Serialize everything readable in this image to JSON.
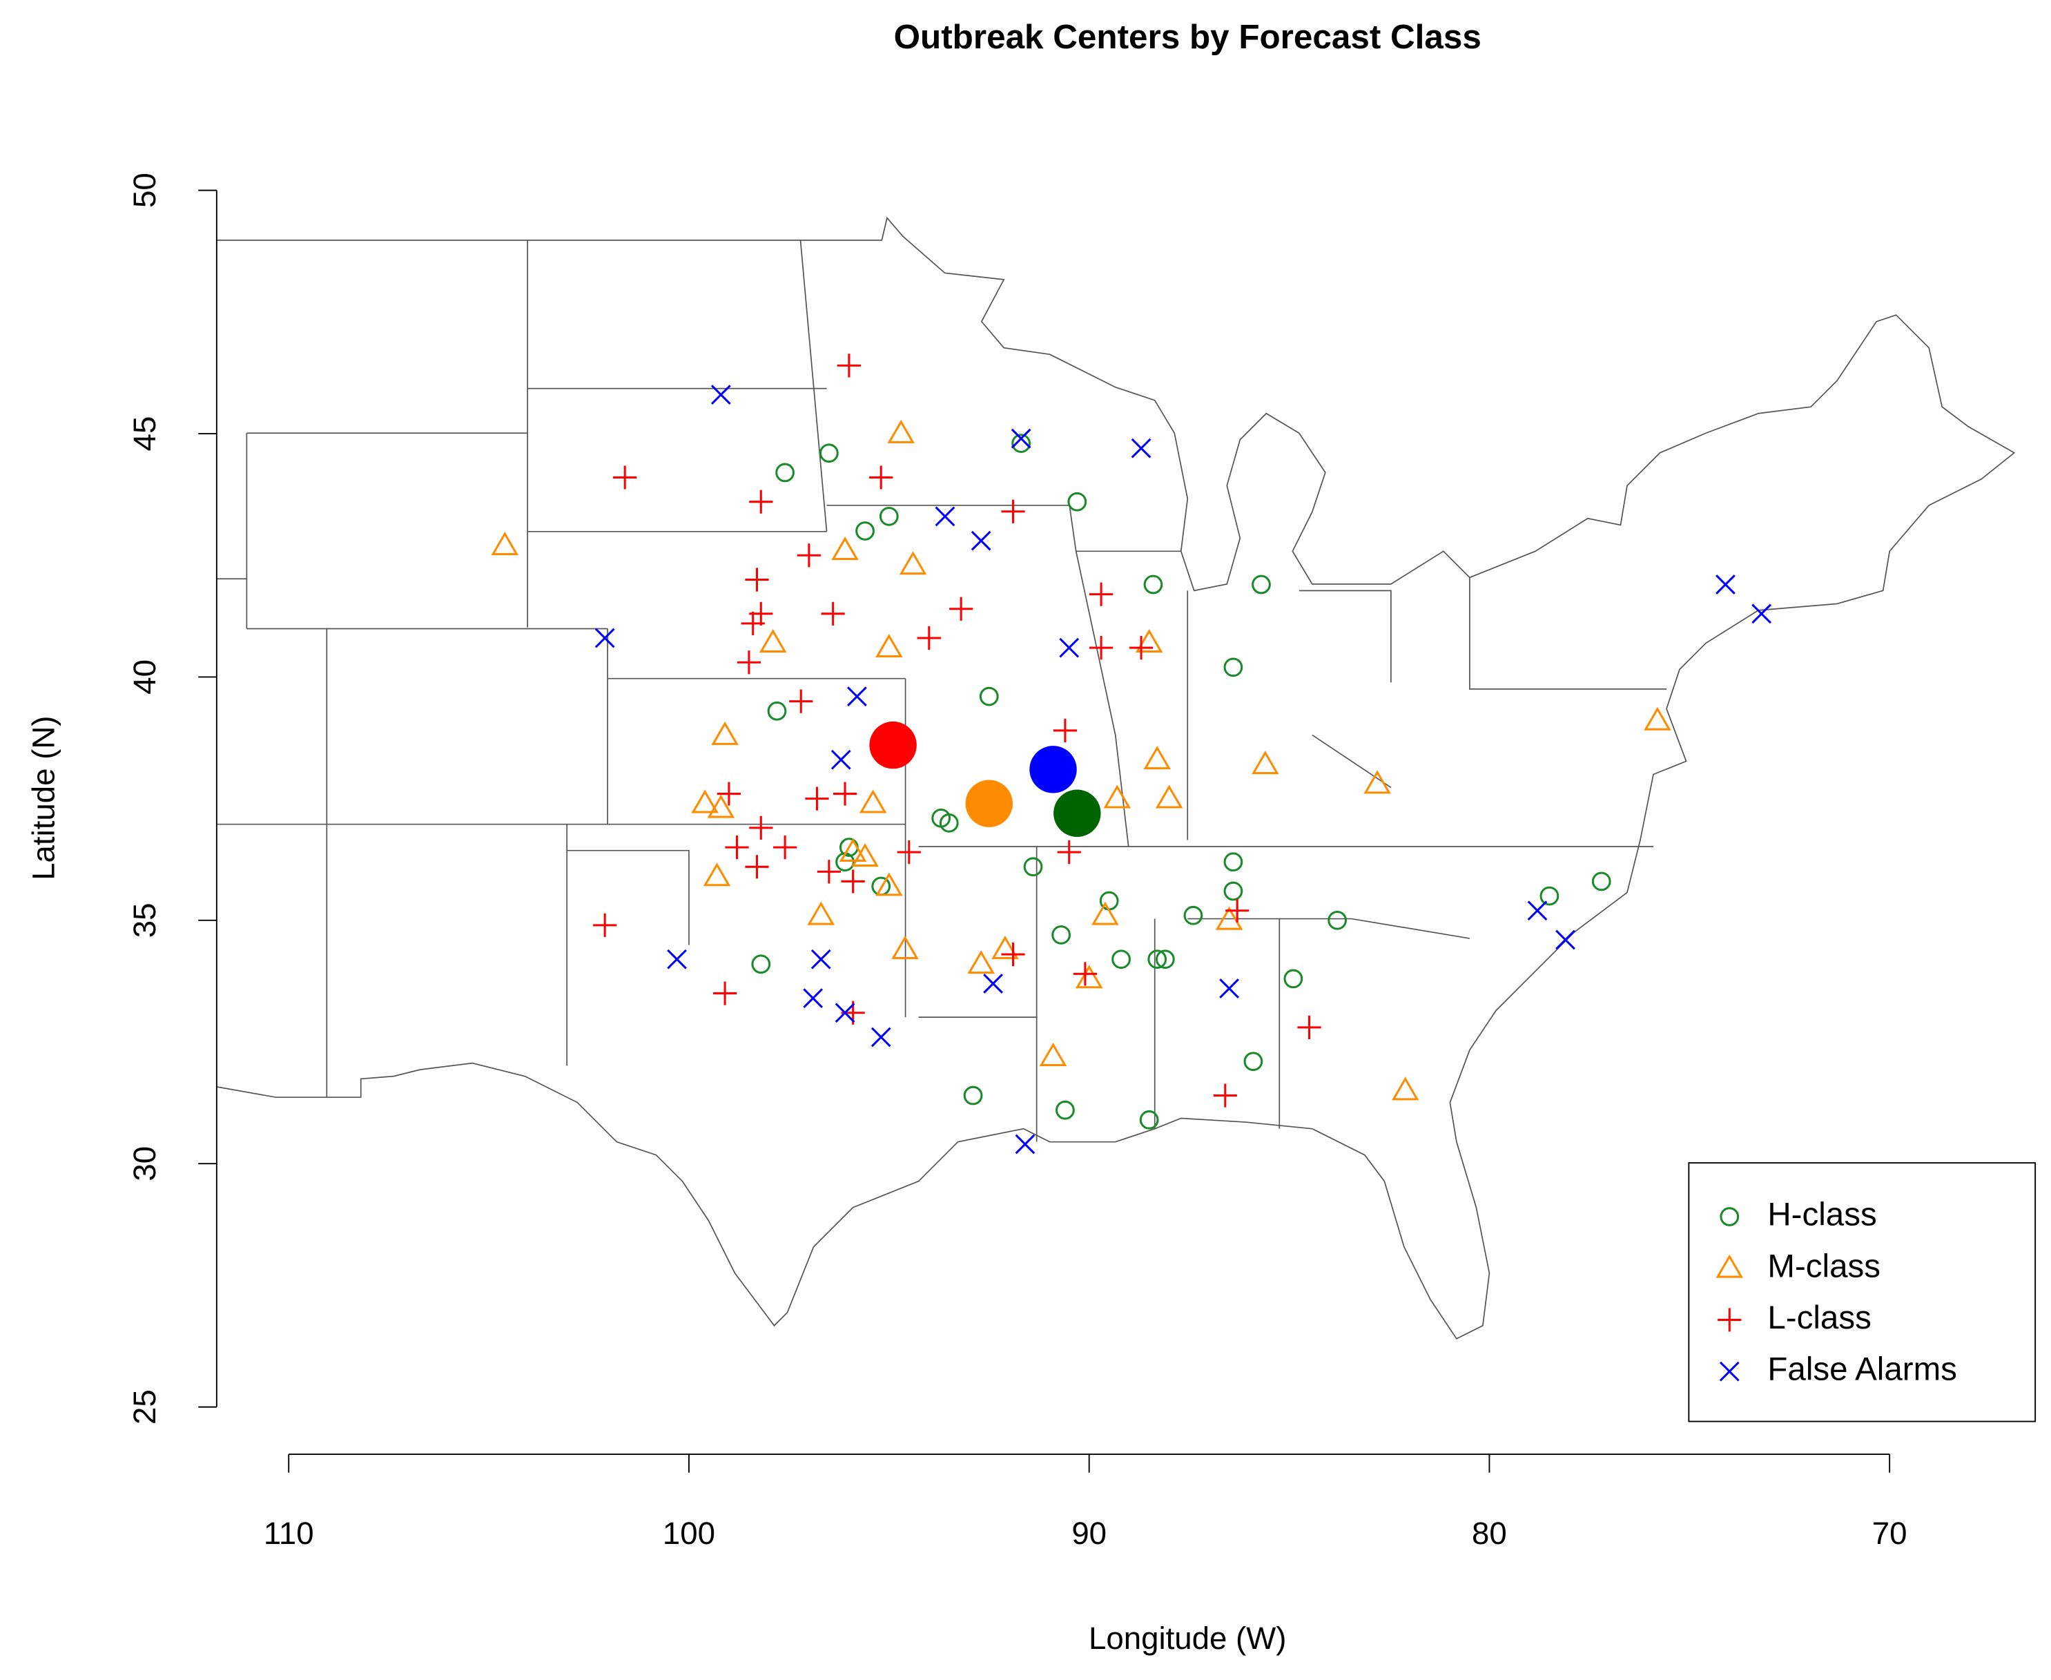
{
  "chart_data": {
    "type": "scatter",
    "title": "Outbreak Centers by Forecast Class",
    "x_label": "Longitude (W)",
    "y_label": "Latitude (N)",
    "xlim": [
      111.8,
      66.5
    ],
    "ylim": [
      25,
      50
    ],
    "xticks": [
      110,
      100,
      90,
      80,
      70
    ],
    "yticks": [
      25,
      30,
      35,
      40,
      45,
      50
    ],
    "legend": "bottomright",
    "series": [
      {
        "name": "H-class",
        "color": "#1a8a2a",
        "marker": "circle",
        "x": [
          97.6,
          96.5,
          91.7,
          90.3,
          95.0,
          95.6,
          88.4,
          85.7,
          86.4,
          92.5,
          97.8,
          93.7,
          93.5,
          96.0,
          96.1,
          95.2,
          91.4,
          86.4,
          86.4,
          89.5,
          90.7,
          87.4,
          83.8,
          78.5,
          77.2,
          98.2,
          89.2,
          88.3,
          88.1,
          84.9,
          85.9,
          92.9,
          90.6,
          88.5
        ],
        "y": [
          44.2,
          44.6,
          44.8,
          43.6,
          43.3,
          43.0,
          41.9,
          41.9,
          40.2,
          39.6,
          39.3,
          37.1,
          37.0,
          36.5,
          36.2,
          35.7,
          36.1,
          36.2,
          35.6,
          35.4,
          34.7,
          35.1,
          35.0,
          35.5,
          35.8,
          34.1,
          34.2,
          34.2,
          34.2,
          33.8,
          32.1,
          31.4,
          31.1,
          30.9
        ]
      },
      {
        "name": "M-class",
        "color": "#ff8c00",
        "marker": "triangle",
        "x": [
          104.6,
          94.7,
          94.4,
          96.1,
          97.9,
          95.0,
          88.5,
          99.1,
          75.8,
          99.6,
          99.2,
          99.3,
          95.4,
          88.3,
          89.3,
          88.0,
          85.6,
          82.8,
          95.9,
          95.6,
          95.0,
          96.7,
          94.6,
          92.7,
          92.1,
          86.5,
          89.6,
          90.0,
          90.9,
          82.1
        ],
        "y": [
          42.7,
          45.0,
          42.3,
          42.6,
          40.7,
          40.6,
          40.7,
          38.8,
          39.1,
          37.4,
          37.3,
          35.9,
          37.4,
          38.3,
          37.5,
          37.5,
          38.2,
          37.8,
          36.4,
          36.3,
          35.7,
          35.1,
          34.4,
          34.1,
          34.4,
          35.0,
          35.1,
          33.8,
          32.2,
          31.5
        ]
      },
      {
        "name": "L-class",
        "color": "#ff0000",
        "marker": "plus",
        "x": [
          96.0,
          101.6,
          95.2,
          98.2,
          91.9,
          97.0,
          98.3,
          96.4,
          98.2,
          93.2,
          94.0,
          89.7,
          98.4,
          89.7,
          88.7,
          98.5,
          97.2,
          90.6,
          99.0,
          96.8,
          96.1,
          98.2,
          97.6,
          98.8,
          98.3,
          96.5,
          94.5,
          90.5,
          95.9,
          102.1,
          99.1,
          95.9,
          91.9,
          90.1,
          86.3,
          84.5,
          86.6
        ],
        "y": [
          46.4,
          44.1,
          44.1,
          43.6,
          43.4,
          42.5,
          42.0,
          41.3,
          41.3,
          41.4,
          40.8,
          41.7,
          41.1,
          40.6,
          40.6,
          40.3,
          39.5,
          38.9,
          37.6,
          37.5,
          37.6,
          36.9,
          36.5,
          36.5,
          36.1,
          36.0,
          36.4,
          36.4,
          35.8,
          34.9,
          33.5,
          33.1,
          34.3,
          33.9,
          35.2,
          32.8,
          31.4
        ]
      },
      {
        "name": "False Alarms",
        "color": "#0000ff",
        "marker": "x",
        "x": [
          99.2,
          91.7,
          88.7,
          93.6,
          92.7,
          102.1,
          90.5,
          95.8,
          96.2,
          74.1,
          73.2,
          100.3,
          96.7,
          96.9,
          96.1,
          95.2,
          92.4,
          86.5,
          78.8,
          78.1,
          91.6
        ],
        "y": [
          45.8,
          44.9,
          44.7,
          43.3,
          42.8,
          40.8,
          40.6,
          39.6,
          38.3,
          41.9,
          41.3,
          34.2,
          34.2,
          33.4,
          33.1,
          32.6,
          33.7,
          33.6,
          35.2,
          34.6,
          30.4
        ]
      }
    ],
    "centers": [
      {
        "color": "#ff0000",
        "x": 94.9,
        "y": 38.6
      },
      {
        "color": "#ff8c00",
        "x": 92.5,
        "y": 37.4
      },
      {
        "color": "#0000ff",
        "x": 90.9,
        "y": 38.1
      },
      {
        "color": "#006400",
        "x": 90.3,
        "y": 37.2
      }
    ]
  }
}
